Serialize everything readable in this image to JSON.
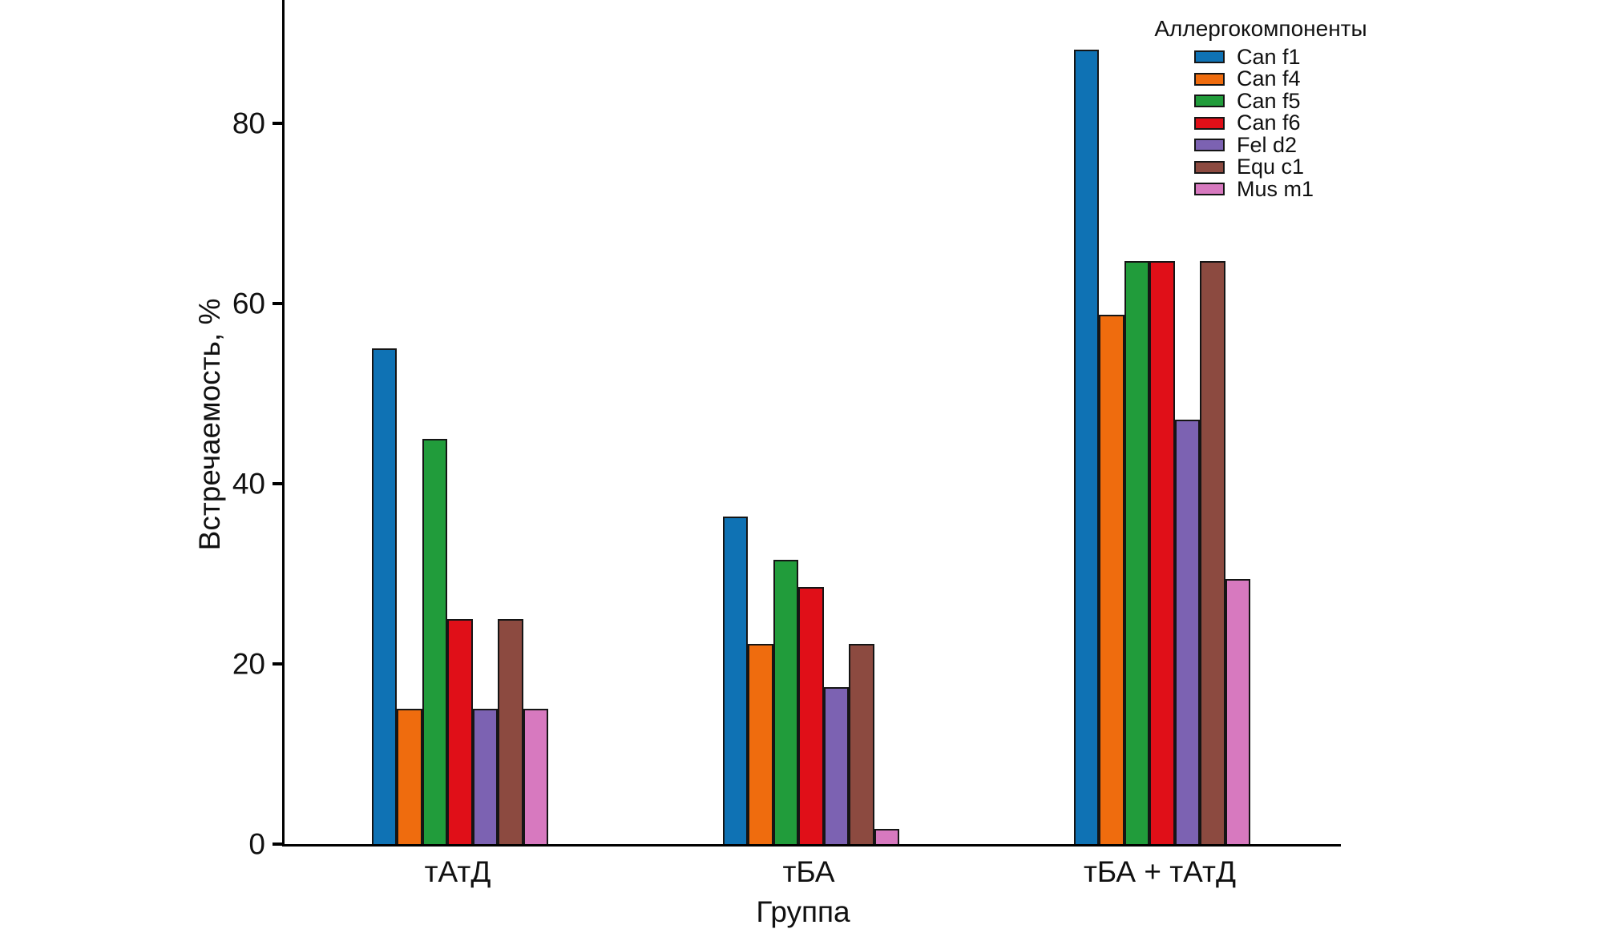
{
  "chart_data": {
    "type": "bar",
    "title": "",
    "categories": [
      "тАтД",
      "тБА",
      "тБА + тАтД"
    ],
    "series": [
      {
        "name": "Can f1",
        "color": "#0f72b4",
        "values": [
          55.0,
          36.4,
          88.2
        ]
      },
      {
        "name": "Can f4",
        "color": "#ef6c0e",
        "values": [
          15.0,
          22.2,
          58.8
        ]
      },
      {
        "name": "Can f5",
        "color": "#219c3b",
        "values": [
          45.0,
          31.6,
          64.7
        ]
      },
      {
        "name": "Can f6",
        "color": "#e00f18",
        "values": [
          25.0,
          28.5,
          64.7
        ]
      },
      {
        "name": "Fel d2",
        "color": "#7c62b2",
        "values": [
          15.0,
          17.4,
          47.1
        ]
      },
      {
        "name": "Equ c1",
        "color": "#8c4a40",
        "values": [
          25.0,
          22.2,
          64.7
        ]
      },
      {
        "name": "Mus m1",
        "color": "#d779bf",
        "values": [
          15.0,
          1.7,
          29.4
        ]
      }
    ],
    "xlabel": "Группа",
    "ylabel": "Встречаемость, %",
    "yticks": [
      0,
      20,
      40,
      60,
      80
    ],
    "ylim": [
      0,
      94
    ],
    "legend_title": "Аллергокомпоненты",
    "legend_position": "upper-right",
    "grid": false,
    "bar_edge_color": "#151515"
  }
}
